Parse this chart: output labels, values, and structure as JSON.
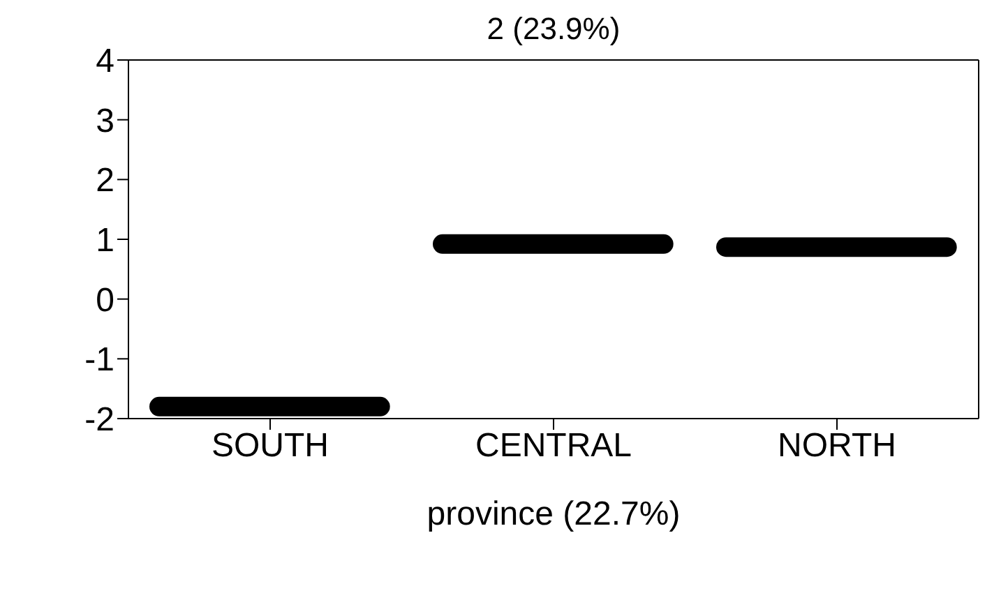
{
  "chart_data": {
    "type": "box",
    "title": "2 (23.9%)",
    "xlabel": "province (22.7%)",
    "categories": [
      "SOUTH",
      "CENTRAL",
      "NORTH"
    ],
    "series": [
      {
        "color": "#000000",
        "boxes": [
          {
            "low": -1.8,
            "q1": -1.8,
            "median": -1.8,
            "q3": -1.8,
            "high": -1.8
          },
          {
            "low": 0.92,
            "q1": 0.92,
            "median": 0.92,
            "q3": 0.92,
            "high": 0.92
          },
          {
            "low": 0.87,
            "q1": 0.87,
            "median": 0.87,
            "q3": 0.87,
            "high": 0.87
          }
        ]
      }
    ],
    "ylim": [
      -2,
      4
    ],
    "yticks": [
      -2,
      -1,
      0,
      1,
      2,
      3,
      4
    ]
  }
}
